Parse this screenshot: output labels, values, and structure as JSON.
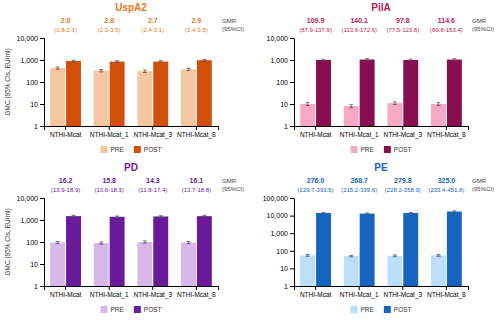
{
  "chart_data": [
    {
      "type": "bar",
      "title": "UspA2",
      "color": "#E87722",
      "categories": [
        "NTHI-Mcat",
        "NTHI-Mcat_1",
        "NTHI-Mcat_3",
        "NTHI-Mcat_8"
      ],
      "series": [
        {
          "name": "PRE",
          "color": "#F5C6A0",
          "values": [
            430,
            330,
            310,
            380
          ],
          "err_low": [
            50,
            40,
            40,
            45
          ],
          "err_high": [
            50,
            40,
            40,
            45
          ]
        },
        {
          "name": "POST",
          "color": "#D2500A",
          "values": [
            900,
            850,
            850,
            980
          ],
          "err_low": [
            80,
            70,
            70,
            90
          ],
          "err_high": [
            80,
            70,
            70,
            90
          ]
        }
      ],
      "ylim": [
        1,
        10000
      ],
      "yticks": [
        1,
        10,
        100,
        {
          "value": 1000,
          "label": "1,000"
        },
        {
          "value": 10000,
          "label": "10,000"
        }
      ],
      "log": "y",
      "ylabel": "GMC (95% CIs, EU/ml)",
      "gmr_values": [
        "2.0",
        "2.8",
        "2.7",
        "2.9"
      ],
      "gmr_ci": [
        "(1.8-2.3)",
        "(2.3-3.5)",
        "(2.4-3.1)",
        "(2.4-3.5)"
      ],
      "gmr_header": "GMR\n(95%CI)",
      "legend": "bottom",
      "grid": false
    },
    {
      "type": "bar",
      "title": "PilA",
      "color": "#C2185B",
      "categories": [
        "NTHI-Mcat",
        "NTHI-Mcat_1",
        "NTHI-Mcat_3",
        "NTHI-Mcat_8"
      ],
      "series": [
        {
          "name": "PRE",
          "color": "#F7A8C4",
          "values": [
            10,
            8,
            11,
            10
          ],
          "err_low": [
            1.5,
            1.2,
            1.5,
            1.5
          ],
          "err_high": [
            1.5,
            1.2,
            1.5,
            1.5
          ]
        },
        {
          "name": "POST",
          "color": "#880E4F",
          "values": [
            1000,
            1050,
            1000,
            1050
          ],
          "err_low": [
            80,
            90,
            85,
            90
          ],
          "err_high": [
            80,
            90,
            85,
            90
          ]
        }
      ],
      "ylim": [
        1,
        10000
      ],
      "yticks": [
        1,
        10,
        100,
        {
          "value": 1000,
          "label": "1,000"
        },
        {
          "value": 10000,
          "label": "10,000"
        }
      ],
      "log": "y",
      "gmr_values": [
        "109.9",
        "140.1",
        "97.8",
        "114.6"
      ],
      "gmr_ci": [
        "(87.9-137.9)",
        "(113.6-172.6)",
        "(77.5-123.8)",
        "(89.8-153.4)"
      ],
      "gmr_header": "GMR\n(95%CI)",
      "legend": "bottom",
      "grid": false
    },
    {
      "type": "bar",
      "title": "PD",
      "color": "#6A1B9A",
      "categories": [
        "NTHI-Mcat",
        "NTHI-Mcat_1",
        "NTHI-Mcat_3",
        "NTHI-Mcat_8"
      ],
      "series": [
        {
          "name": "PRE",
          "color": "#D7B8E8",
          "values": [
            95,
            90,
            100,
            95
          ],
          "err_low": [
            10,
            10,
            12,
            10
          ],
          "err_high": [
            10,
            10,
            12,
            10
          ]
        },
        {
          "name": "POST",
          "color": "#6A1B9A",
          "values": [
            1500,
            1400,
            1450,
            1500
          ],
          "err_low": [
            120,
            110,
            115,
            120
          ],
          "err_high": [
            120,
            110,
            115,
            120
          ]
        }
      ],
      "ylim": [
        1,
        10000
      ],
      "yticks": [
        1,
        10,
        100,
        {
          "value": 1000,
          "label": "1,000"
        },
        {
          "value": 10000,
          "label": "10,000"
        }
      ],
      "log": "y",
      "ylabel": "GMC (95% CIs, EU/ml)",
      "gmr_values": [
        "16.2",
        "15.8",
        "14.3",
        "16.1"
      ],
      "gmr_ci": [
        "(13.9-18.9)",
        "(13.6-18.3)",
        "(11.8-17.4)",
        "(13.7-18.8)"
      ],
      "gmr_header": "GMR\n(95%CI)",
      "legend": "bottom",
      "grid": false
    },
    {
      "type": "bar",
      "title": "PE",
      "color": "#1565C0",
      "categories": [
        "NTHI-Mcat",
        "NTHI-Mcat_1",
        "NTHI-Mcat_3",
        "NTHI-Mcat_8"
      ],
      "series": [
        {
          "name": "PRE",
          "color": "#BBDEFB",
          "values": [
            55,
            50,
            52,
            55
          ],
          "err_low": [
            6,
            5,
            6,
            6
          ],
          "err_high": [
            6,
            5,
            6,
            6
          ]
        },
        {
          "name": "POST",
          "color": "#1565C0",
          "values": [
            14000,
            13000,
            14000,
            17000
          ],
          "err_low": [
            1200,
            1100,
            1200,
            1500
          ],
          "err_high": [
            1200,
            1100,
            1200,
            1500
          ]
        }
      ],
      "ylim": [
        1,
        100000
      ],
      "yticks": [
        1,
        10,
        100,
        {
          "value": 1000,
          "label": "1,000"
        },
        {
          "value": 10000,
          "label": "10,000"
        },
        {
          "value": 100000,
          "label": "100,000"
        }
      ],
      "log": "y",
      "gmr_values": [
        "276.0",
        "268.7",
        "279.8",
        "325.0"
      ],
      "gmr_ci": [
        "(229.7-393.5)",
        "(215.2-339.6)",
        "(228.2-358.9)",
        "(233.4-451.8)"
      ],
      "gmr_header": "GMR\n(95%CI)",
      "legend": "bottom",
      "grid": false
    }
  ]
}
